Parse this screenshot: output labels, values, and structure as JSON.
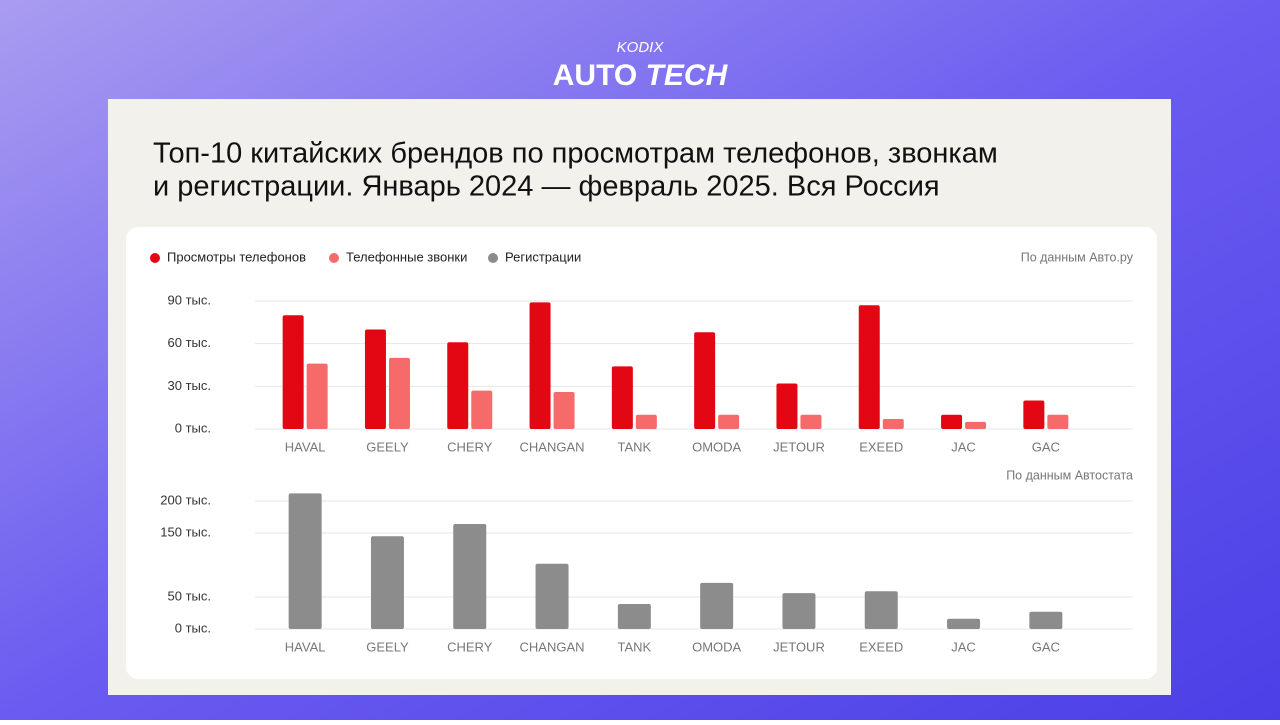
{
  "header": {
    "brand": "KODIX",
    "title_a": "AUTO",
    "title_b": "TECH"
  },
  "title": [
    "Топ-10 китайских брендов по просмотрам телефонов, звонкам",
    "и регистрации. Январь 2024 — февраль 2025. Вся Россия"
  ],
  "chart_data": [
    {
      "type": "bar",
      "source": "По данным Авто.ру",
      "categories": [
        "HAVAL",
        "GEELY",
        "CHERY",
        "CHANGAN",
        "TANK",
        "OMODA",
        "JETOUR",
        "EXEED",
        "JAC",
        "GAC"
      ],
      "series": [
        {
          "name": "Просмотры телефонов",
          "color": "#e30613",
          "values": [
            80,
            70,
            61,
            89,
            44,
            68,
            32,
            87,
            10,
            20
          ]
        },
        {
          "name": "Телефонные звонки",
          "color": "#f76a6a",
          "values": [
            46,
            50,
            27,
            26,
            10,
            10,
            10,
            7,
            5,
            10
          ]
        }
      ],
      "ylim": [
        0,
        90
      ],
      "yticks": [
        {
          "value": 0,
          "label": "0 тыс."
        },
        {
          "value": 30,
          "label": "30 тыс."
        },
        {
          "value": 60,
          "label": "60 тыс."
        },
        {
          "value": 90,
          "label": "90 тыс."
        }
      ],
      "grid": true
    },
    {
      "type": "bar",
      "source": "По данным Автостата",
      "categories": [
        "HAVAL",
        "GEELY",
        "CHERY",
        "CHANGAN",
        "TANK",
        "OMODA",
        "JETOUR",
        "EXEED",
        "JAC",
        "GAC"
      ],
      "series": [
        {
          "name": "Регистрации",
          "color": "#8c8c8c",
          "values": [
            212,
            145,
            164,
            102,
            39,
            72,
            56,
            59,
            16,
            27
          ]
        }
      ],
      "ylim": [
        0,
        215
      ],
      "yticks": [
        {
          "value": 0,
          "label": "0 тыс."
        },
        {
          "value": 50,
          "label": "50 тыс."
        },
        {
          "value": 150,
          "label": "150 тыс."
        },
        {
          "value": 200,
          "label": "200 тыс."
        }
      ],
      "grid": true
    }
  ]
}
